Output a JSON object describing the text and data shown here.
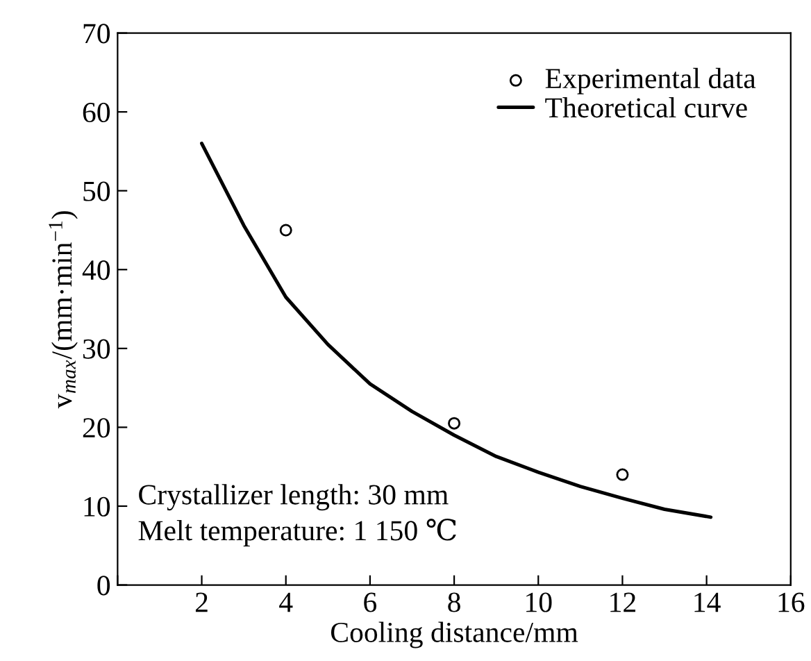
{
  "chart_data": {
    "type": "line",
    "xlabel": "Cooling distance/mm",
    "ylabel": "v$_{max}$/(mm·min$^{−1}$)",
    "xlim": [
      0,
      16
    ],
    "ylim": [
      0,
      70
    ],
    "xticks": [
      {
        "value": 0,
        "label": null
      },
      2,
      4,
      6,
      8,
      10,
      12,
      14,
      16
    ],
    "yticks": [
      0,
      10,
      20,
      30,
      40,
      50,
      60,
      70
    ],
    "series": [
      {
        "name": "Experimental data",
        "type": "scatter",
        "color": "#000000",
        "marker": "circle",
        "x": [
          4,
          8,
          12
        ],
        "values": [
          45,
          20.5,
          14
        ]
      },
      {
        "name": "Theoretical curve",
        "color": "#000000",
        "marker": "none",
        "line_style": "solid",
        "x": [
          2,
          3,
          4,
          5,
          6,
          7,
          8,
          9,
          10,
          11,
          12,
          13,
          14.1
        ],
        "values": [
          56,
          45.6,
          36.5,
          30.5,
          25.5,
          22,
          19,
          16.3,
          14.3,
          12.5,
          11,
          9.6,
          8.6
        ]
      }
    ],
    "annotations": [
      "Crystallizer length: 30 mm",
      "Melt temperature: 1 150 ℃"
    ],
    "legend": "top right",
    "grid": false
  }
}
